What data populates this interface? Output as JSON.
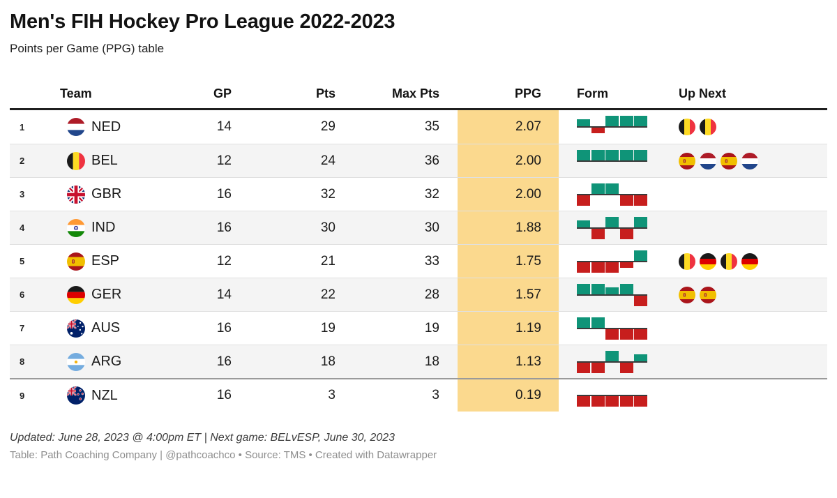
{
  "header": {
    "title": "Men's FIH Hockey Pro League 2022-2023",
    "subtitle": "Points per Game (PPG) table"
  },
  "chart_data": {
    "type": "table",
    "columns": [
      "",
      "Team",
      "GP",
      "Pts",
      "Max Pts",
      "PPG",
      "Form",
      "Up Next"
    ],
    "rows": [
      {
        "rank": "1",
        "team": "NED",
        "flag": "ned",
        "gp": "14",
        "pts": "29",
        "max_pts": "35",
        "ppg": "2.07",
        "form": [
          "shootout_win",
          "shootout_loss",
          "win",
          "win",
          "win"
        ],
        "up_next": [
          "bel",
          "bel"
        ]
      },
      {
        "rank": "2",
        "team": "BEL",
        "flag": "bel",
        "gp": "12",
        "pts": "24",
        "max_pts": "36",
        "ppg": "2.00",
        "form": [
          "win",
          "win",
          "win",
          "win",
          "win"
        ],
        "up_next": [
          "esp",
          "ned",
          "esp",
          "ned"
        ]
      },
      {
        "rank": "3",
        "team": "GBR",
        "flag": "gbr",
        "gp": "16",
        "pts": "32",
        "max_pts": "32",
        "ppg": "2.00",
        "form": [
          "loss",
          "win",
          "win",
          "loss",
          "loss"
        ],
        "up_next": []
      },
      {
        "rank": "4",
        "team": "IND",
        "flag": "ind",
        "gp": "16",
        "pts": "30",
        "max_pts": "30",
        "ppg": "1.88",
        "form": [
          "shootout_win",
          "loss",
          "win",
          "loss",
          "win"
        ],
        "up_next": []
      },
      {
        "rank": "5",
        "team": "ESP",
        "flag": "esp",
        "gp": "12",
        "pts": "21",
        "max_pts": "33",
        "ppg": "1.75",
        "form": [
          "loss",
          "loss",
          "loss",
          "shootout_loss",
          "win"
        ],
        "up_next": [
          "bel",
          "ger",
          "bel",
          "ger"
        ]
      },
      {
        "rank": "6",
        "team": "GER",
        "flag": "ger",
        "gp": "14",
        "pts": "22",
        "max_pts": "28",
        "ppg": "1.57",
        "form": [
          "win",
          "win",
          "shootout_win",
          "win",
          "loss"
        ],
        "up_next": [
          "esp",
          "esp"
        ]
      },
      {
        "rank": "7",
        "team": "AUS",
        "flag": "aus",
        "gp": "16",
        "pts": "19",
        "max_pts": "19",
        "ppg": "1.19",
        "form": [
          "win",
          "win",
          "loss",
          "loss",
          "loss"
        ],
        "up_next": []
      },
      {
        "rank": "8",
        "team": "ARG",
        "flag": "arg",
        "gp": "16",
        "pts": "18",
        "max_pts": "18",
        "ppg": "1.13",
        "form": [
          "loss",
          "loss",
          "win",
          "loss",
          "shootout_win"
        ],
        "up_next": []
      },
      {
        "rank": "9",
        "team": "NZL",
        "flag": "nzl",
        "gp": "16",
        "pts": "3",
        "max_pts": "3",
        "ppg": "0.19",
        "form": [
          "loss",
          "loss",
          "loss",
          "loss",
          "loss"
        ],
        "up_next": []
      }
    ]
  },
  "colors": {
    "ppg_highlight": "#fbd98e",
    "form_win": "#0f9478",
    "form_loss": "#c71e1d",
    "row_alt": "#f4f4f4"
  },
  "footer": {
    "updated": "Updated: June 28, 2023 @ 4:00pm ET | Next game: BELvESP, June 30, 2023",
    "attribution": "Table: Path Coaching Company | @pathcoachco • Source: TMS • Created with Datawrapper"
  }
}
